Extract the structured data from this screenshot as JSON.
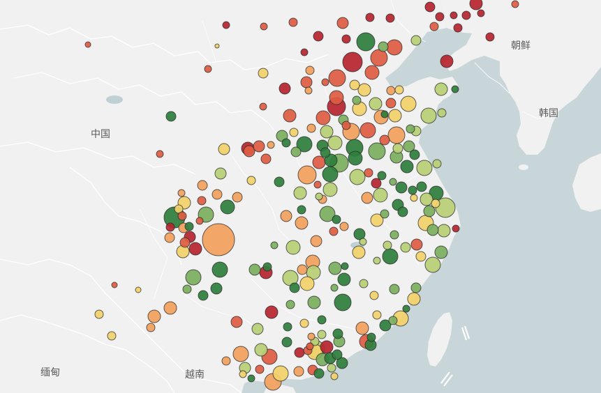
{
  "map": {
    "title": "",
    "colors": {
      "land": "#f1f1f1",
      "land_shade": "#e6e6e6",
      "sea": "#c9d6d9",
      "border": "#ffffff",
      "water_body": "#bfd0d4",
      "bubble_stroke": "#333333"
    },
    "labels": {
      "china": "中国",
      "north_korea": "朝鲜",
      "south_korea": "韩国",
      "myanmar": "缅甸",
      "vietnam": "越南"
    },
    "color_scale": [
      "#b6242f",
      "#de5c42",
      "#f2a15c",
      "#f3d16a",
      "#b9cf75",
      "#7aaf5e",
      "#2f7e3c"
    ],
    "points": [
      [
        126,
        64,
        4,
        1
      ],
      [
        324,
        36,
        5,
        0
      ],
      [
        378,
        38,
        5,
        1
      ],
      [
        420,
        32,
        6,
        1
      ],
      [
        491,
        33,
        8,
        1
      ],
      [
        530,
        25,
        6,
        0
      ],
      [
        559,
        26,
        6,
        0
      ],
      [
        616,
        10,
        7,
        0
      ],
      [
        630,
        24,
        6,
        0
      ],
      [
        650,
        22,
        5,
        0
      ],
      [
        668,
        22,
        6,
        0
      ],
      [
        682,
        5,
        9,
        0
      ],
      [
        689,
        19,
        5,
        0
      ],
      [
        738,
        6,
        5,
        1
      ],
      [
        596,
        58,
        7,
        4
      ],
      [
        622,
        38,
        6,
        1
      ],
      [
        656,
        40,
        6,
        0
      ],
      [
        702,
        53,
        6,
        0
      ],
      [
        640,
        88,
        9,
        0
      ],
      [
        311,
        66,
        3,
        3
      ],
      [
        298,
        99,
        5,
        1
      ],
      [
        377,
        105,
        7,
        3
      ],
      [
        456,
        52,
        7,
        0
      ],
      [
        436,
        75,
        5,
        0
      ],
      [
        496,
        56,
        6,
        0
      ],
      [
        524,
        60,
        13,
        6
      ],
      [
        549,
        67,
        7,
        5
      ],
      [
        565,
        68,
        11,
        1
      ],
      [
        543,
        83,
        12,
        1
      ],
      [
        505,
        89,
        14,
        0
      ],
      [
        533,
        104,
        10,
        1
      ],
      [
        444,
        101,
        6,
        2
      ],
      [
        466,
        118,
        5,
        1
      ],
      [
        483,
        112,
        12,
        1
      ],
      [
        439,
        118,
        8,
        1
      ],
      [
        442,
        130,
        5,
        2
      ],
      [
        408,
        127,
        8,
        0
      ],
      [
        508,
        122,
        7,
        3
      ],
      [
        522,
        129,
        9,
        3
      ],
      [
        560,
        130,
        6,
        2
      ],
      [
        572,
        129,
        6,
        3
      ],
      [
        482,
        140,
        10,
        1
      ],
      [
        482,
        153,
        13,
        0
      ],
      [
        511,
        144,
        6,
        5
      ],
      [
        515,
        156,
        10,
        3
      ],
      [
        538,
        149,
        9,
        4
      ],
      [
        560,
        148,
        7,
        1
      ],
      [
        585,
        149,
        11,
        3
      ],
      [
        632,
        128,
        9,
        4
      ],
      [
        652,
        128,
        5,
        6
      ],
      [
        377,
        153,
        5,
        1
      ],
      [
        415,
        166,
        9,
        1
      ],
      [
        446,
        184,
        6,
        2
      ],
      [
        463,
        169,
        10,
        1
      ],
      [
        492,
        172,
        7,
        5
      ],
      [
        496,
        180,
        6,
        1
      ],
      [
        503,
        189,
        12,
        2
      ],
      [
        527,
        187,
        11,
        1
      ],
      [
        551,
        164,
        5,
        6
      ],
      [
        546,
        168,
        10,
        2
      ],
      [
        566,
        166,
        9,
        3
      ],
      [
        614,
        166,
        11,
        4
      ],
      [
        596,
        188,
        7,
        4
      ],
      [
        568,
        194,
        12,
        2
      ],
      [
        588,
        185,
        6,
        5
      ],
      [
        633,
        162,
        6,
        4
      ],
      [
        245,
        167,
        7,
        6
      ],
      [
        421,
        190,
        6,
        3
      ],
      [
        404,
        195,
        8,
        5
      ],
      [
        410,
        205,
        6,
        6
      ],
      [
        436,
        207,
        11,
        6
      ],
      [
        468,
        189,
        9,
        4
      ],
      [
        462,
        209,
        8,
        6
      ],
      [
        480,
        205,
        10,
        4
      ],
      [
        508,
        212,
        12,
        6
      ],
      [
        540,
        217,
        12,
        5
      ],
      [
        551,
        201,
        7,
        1
      ],
      [
        570,
        213,
        7,
        4
      ],
      [
        568,
        225,
        9,
        5
      ],
      [
        586,
        210,
        8,
        5
      ],
      [
        594,
        222,
        7,
        6
      ],
      [
        321,
        214,
        8,
        3
      ],
      [
        355,
        213,
        9,
        0
      ],
      [
        357,
        217,
        8,
        1
      ],
      [
        371,
        210,
        8,
        1
      ],
      [
        388,
        208,
        5,
        2
      ],
      [
        229,
        221,
        5,
        1
      ],
      [
        381,
        228,
        7,
        1
      ],
      [
        424,
        218,
        7,
        5
      ],
      [
        457,
        233,
        9,
        1
      ],
      [
        466,
        219,
        7,
        6
      ],
      [
        474,
        230,
        9,
        6
      ],
      [
        486,
        234,
        13,
        5
      ],
      [
        440,
        251,
        13,
        2
      ],
      [
        509,
        227,
        10,
        6
      ],
      [
        512,
        254,
        11,
        4
      ],
      [
        473,
        250,
        11,
        6
      ],
      [
        473,
        272,
        10,
        4
      ],
      [
        528,
        248,
        6,
        1
      ],
      [
        547,
        252,
        6,
        6
      ],
      [
        583,
        239,
        9,
        6
      ],
      [
        608,
        241,
        11,
        4
      ],
      [
        626,
        235,
        6,
        4
      ],
      [
        316,
        249,
        8,
        4
      ],
      [
        360,
        259,
        6,
        3
      ],
      [
        400,
        261,
        7,
        6
      ],
      [
        290,
        266,
        7,
        2
      ],
      [
        260,
        277,
        5,
        2
      ],
      [
        311,
        279,
        7,
        2
      ],
      [
        289,
        288,
        6,
        1
      ],
      [
        340,
        283,
        7,
        2
      ],
      [
        430,
        277,
        9,
        4
      ],
      [
        455,
        265,
        5,
        1
      ],
      [
        539,
        263,
        7,
        0
      ],
      [
        563,
        261,
        5,
        5
      ],
      [
        575,
        269,
        8,
        6
      ],
      [
        591,
        273,
        6,
        6
      ],
      [
        604,
        268,
        7,
        6
      ],
      [
        526,
        284,
        8,
        2
      ],
      [
        545,
        280,
        10,
        4
      ],
      [
        593,
        284,
        5,
        3
      ],
      [
        625,
        277,
        10,
        6
      ],
      [
        570,
        294,
        8,
        6
      ],
      [
        577,
        304,
        7,
        6
      ],
      [
        611,
        286,
        9,
        4
      ],
      [
        624,
        292,
        6,
        3
      ],
      [
        638,
        298,
        14,
        4
      ],
      [
        615,
        303,
        8,
        5
      ],
      [
        551,
        307,
        6,
        5
      ],
      [
        264,
        291,
        9,
        3
      ],
      [
        256,
        300,
        6,
        3
      ],
      [
        250,
        312,
        15,
        6
      ],
      [
        326,
        297,
        10,
        6
      ],
      [
        295,
        308,
        11,
        5
      ],
      [
        261,
        310,
        6,
        1
      ],
      [
        286,
        317,
        5,
        1
      ],
      [
        432,
        301,
        6,
        6
      ],
      [
        462,
        286,
        6,
        2
      ],
      [
        469,
        307,
        11,
        5
      ],
      [
        457,
        282,
        5,
        4
      ],
      [
        410,
        310,
        8,
        2
      ],
      [
        432,
        320,
        9,
        2
      ],
      [
        482,
        315,
        6,
        6
      ],
      [
        540,
        316,
        9,
        3
      ],
      [
        610,
        320,
        11,
        3
      ],
      [
        620,
        330,
        8,
        5
      ],
      [
        636,
        331,
        9,
        4
      ],
      [
        653,
        328,
        5,
        0
      ],
      [
        244,
        326,
        6,
        0
      ],
      [
        271,
        325,
        6,
        6
      ],
      [
        263,
        327,
        7,
        2
      ],
      [
        313,
        344,
        23,
        2
      ],
      [
        272,
        340,
        8,
        0
      ],
      [
        280,
        357,
        9,
        0
      ],
      [
        265,
        348,
        7,
        1
      ],
      [
        243,
        341,
        7,
        2
      ],
      [
        262,
        361,
        9,
        3
      ],
      [
        478,
        332,
        6,
        1
      ],
      [
        493,
        325,
        6,
        2
      ],
      [
        515,
        336,
        8,
        6
      ],
      [
        453,
        346,
        8,
        2
      ],
      [
        420,
        355,
        10,
        4
      ],
      [
        393,
        352,
        5,
        5
      ],
      [
        520,
        347,
        5,
        4
      ],
      [
        565,
        337,
        6,
        5
      ],
      [
        581,
        355,
        7,
        4
      ],
      [
        597,
        351,
        8,
        1
      ],
      [
        632,
        362,
        9,
        5
      ],
      [
        603,
        368,
        7,
        3
      ],
      [
        555,
        352,
        6,
        4
      ],
      [
        514,
        362,
        9,
        3
      ],
      [
        559,
        368,
        11,
        6
      ],
      [
        540,
        374,
        5,
        4
      ],
      [
        620,
        380,
        11,
        4
      ],
      [
        448,
        376,
        10,
        2
      ],
      [
        433,
        387,
        7,
        2
      ],
      [
        480,
        385,
        9,
        5
      ],
      [
        494,
        382,
        5,
        6
      ],
      [
        416,
        399,
        11,
        4
      ],
      [
        422,
        413,
        7,
        6
      ],
      [
        449,
        391,
        10,
        4
      ],
      [
        440,
        407,
        10,
        3
      ],
      [
        493,
        401,
        9,
        6
      ],
      [
        315,
        387,
        11,
        6
      ],
      [
        365,
        387,
        8,
        5
      ],
      [
        381,
        391,
        9,
        0
      ],
      [
        383,
        383,
        6,
        6
      ],
      [
        277,
        398,
        11,
        5
      ],
      [
        310,
        414,
        8,
        6
      ],
      [
        268,
        415,
        6,
        5
      ],
      [
        291,
        424,
        7,
        6
      ],
      [
        244,
        442,
        9,
        2
      ],
      [
        198,
        416,
        4,
        3
      ],
      [
        164,
        409,
        4,
        1
      ],
      [
        479,
        413,
        5,
        5
      ],
      [
        521,
        407,
        6,
        4
      ],
      [
        565,
        415,
        7,
        5
      ],
      [
        596,
        413,
        7,
        5
      ],
      [
        593,
        429,
        9,
        3
      ],
      [
        582,
        443,
        5,
        6
      ],
      [
        450,
        434,
        9,
        5
      ],
      [
        491,
        434,
        12,
        6
      ],
      [
        536,
        424,
        6,
        3
      ],
      [
        389,
        448,
        9,
        0
      ],
      [
        416,
        437,
        6,
        5
      ],
      [
        221,
        454,
        9,
        2
      ],
      [
        142,
        451,
        6,
        3
      ],
      [
        216,
        470,
        6,
        2
      ],
      [
        160,
        482,
        6,
        3
      ],
      [
        339,
        462,
        8,
        1
      ],
      [
        369,
        472,
        8,
        4
      ],
      [
        412,
        469,
        6,
        6
      ],
      [
        436,
        464,
        6,
        3
      ],
      [
        461,
        459,
        6,
        6
      ],
      [
        540,
        452,
        6,
        3
      ],
      [
        552,
        467,
        8,
        6
      ],
      [
        563,
        460,
        6,
        5
      ],
      [
        574,
        457,
        11,
        3
      ],
      [
        519,
        471,
        9,
        2
      ],
      [
        532,
        484,
        6,
        6
      ],
      [
        531,
        495,
        8,
        6
      ],
      [
        525,
        490,
        10,
        1
      ],
      [
        484,
        479,
        7,
        6
      ],
      [
        461,
        480,
        6,
        4
      ],
      [
        446,
        483,
        5,
        2
      ],
      [
        451,
        490,
        6,
        4
      ],
      [
        486,
        490,
        8,
        5
      ],
      [
        468,
        498,
        9,
        0
      ],
      [
        441,
        503,
        6,
        1
      ],
      [
        429,
        506,
        7,
        0
      ],
      [
        453,
        501,
        12,
        4
      ],
      [
        451,
        505,
        11,
        3
      ],
      [
        462,
        516,
        9,
        5
      ],
      [
        473,
        514,
        8,
        6
      ],
      [
        483,
        509,
        7,
        6
      ],
      [
        411,
        491,
        7,
        6
      ],
      [
        444,
        497,
        5,
        1
      ],
      [
        374,
        502,
        9,
        4
      ],
      [
        386,
        512,
        11,
        1
      ],
      [
        345,
        508,
        11,
        2
      ],
      [
        324,
        518,
        6,
        2
      ],
      [
        351,
        528,
        8,
        4
      ],
      [
        372,
        530,
        6,
        1
      ],
      [
        348,
        537,
        5,
        3
      ],
      [
        360,
        543,
        5,
        6
      ],
      [
        402,
        536,
        11,
        3
      ],
      [
        391,
        548,
        12,
        2
      ],
      [
        428,
        533,
        7,
        2
      ],
      [
        448,
        531,
        7,
        1
      ],
      [
        457,
        536,
        7,
        6
      ],
      [
        475,
        528,
        6,
        4
      ],
      [
        490,
        521,
        8,
        6
      ],
      [
        479,
        540,
        5,
        3
      ]
    ]
  }
}
